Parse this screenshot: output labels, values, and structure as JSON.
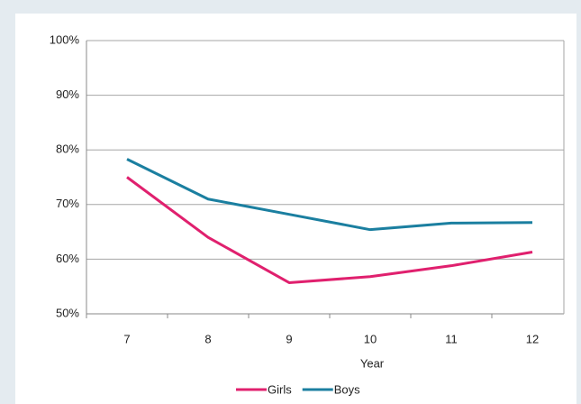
{
  "chart_data": {
    "type": "line",
    "x_label": "Year",
    "categories": [
      "7",
      "8",
      "9",
      "10",
      "11",
      "12"
    ],
    "series": [
      {
        "name": "Girls",
        "color": "#e0206e",
        "values": [
          75,
          64,
          55.7,
          56.8,
          58.8,
          61.3
        ]
      },
      {
        "name": "Boys",
        "color": "#1b7fa0",
        "values": [
          78.3,
          71,
          68.2,
          65.4,
          66.6,
          66.7
        ]
      }
    ],
    "ylim": [
      50,
      100
    ],
    "yticks": [
      {
        "value": 50,
        "label": "50%"
      },
      {
        "value": 60,
        "label": "60%"
      },
      {
        "value": 70,
        "label": "70%"
      },
      {
        "value": 80,
        "label": "80%"
      },
      {
        "value": 90,
        "label": "90%"
      },
      {
        "value": 100,
        "label": "100%"
      }
    ],
    "grid": true,
    "legend": "bottom"
  }
}
